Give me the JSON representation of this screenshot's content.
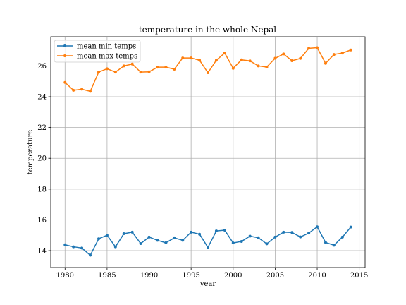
{
  "chart_data": {
    "type": "line",
    "title": "temperature in the whole Nepal",
    "xlabel": "year",
    "ylabel": "temperature",
    "xlim": [
      1978.3,
      2015.7
    ],
    "ylim": [
      12.9,
      27.9
    ],
    "xticks": [
      1980,
      1985,
      1990,
      1995,
      2000,
      2005,
      2010,
      2015
    ],
    "yticks": [
      14,
      16,
      18,
      20,
      22,
      24,
      26
    ],
    "grid": true,
    "legend_position": "upper left",
    "x": [
      1980,
      1981,
      1982,
      1983,
      1984,
      1985,
      1986,
      1987,
      1988,
      1989,
      1990,
      1991,
      1992,
      1993,
      1994,
      1995,
      1996,
      1997,
      1998,
      1999,
      2000,
      2001,
      2002,
      2003,
      2004,
      2005,
      2006,
      2007,
      2008,
      2009,
      2010,
      2011,
      2012,
      2013,
      2014
    ],
    "series": [
      {
        "name": "mean min temps",
        "color": "#1f77b4",
        "values": [
          14.38,
          14.25,
          14.17,
          13.7,
          14.77,
          15.0,
          14.25,
          15.1,
          15.2,
          14.46,
          14.88,
          14.67,
          14.51,
          14.83,
          14.67,
          15.2,
          15.07,
          14.21,
          15.28,
          15.33,
          14.5,
          14.6,
          14.94,
          14.84,
          14.44,
          14.88,
          15.2,
          15.18,
          14.89,
          15.14,
          15.55,
          14.53,
          14.35,
          14.88,
          15.53
        ]
      },
      {
        "name": "mean max temps",
        "color": "#ff7f0e",
        "values": [
          24.93,
          24.42,
          24.49,
          24.35,
          25.6,
          25.82,
          25.6,
          26.0,
          26.12,
          25.6,
          25.62,
          25.92,
          25.92,
          25.79,
          26.52,
          26.52,
          26.37,
          25.56,
          26.37,
          26.84,
          25.85,
          26.4,
          26.33,
          26.0,
          25.93,
          26.5,
          26.78,
          26.34,
          26.49,
          27.15,
          27.19,
          26.17,
          26.75,
          26.84,
          27.04
        ]
      }
    ]
  }
}
